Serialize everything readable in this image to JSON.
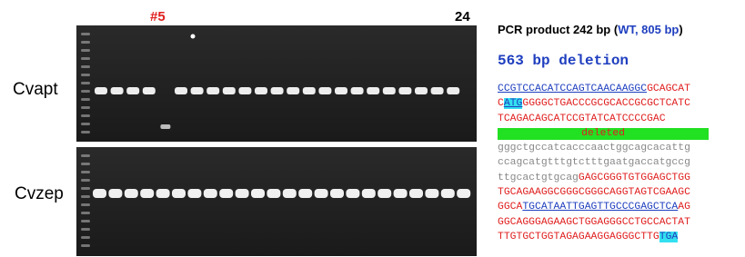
{
  "labels": {
    "lane_marker": "#5",
    "lane_count": "24",
    "gel_top": "Cvapt",
    "gel_bottom": "Cvzep"
  },
  "header": {
    "segments": [
      {
        "text": "PCR product 242 bp (",
        "color": "#000000"
      },
      {
        "text": "WT, 805 bp",
        "color": "#1f3fbf"
      },
      {
        "text": ")",
        "color": "#000000"
      }
    ]
  },
  "subtitle": "563 bp deletion",
  "sequence": {
    "lines": [
      {
        "segments": [
          {
            "text": "CCGTCCACATCCAGTCAACAAGGC",
            "color": "#1f3fbf",
            "underline": true
          },
          {
            "text": "GCAGCAT",
            "color": "#e02020"
          }
        ]
      },
      {
        "segments": [
          {
            "text": "C",
            "color": "#e02020"
          },
          {
            "text": "ATG",
            "color": "#1f3fbf",
            "underline": true,
            "highlight": "#33e0f0"
          },
          {
            "text": "GGGGCTGACCCGCGCACCGCGCTCATC",
            "color": "#e02020"
          }
        ]
      },
      {
        "segments": [
          {
            "text": "TCAGACAGCATCCGTATCATCCCCGAC",
            "color": "#e02020"
          }
        ]
      },
      {
        "segments": [
          {
            "text": "deleted",
            "color": "#e02020",
            "bar": "#22e022"
          }
        ]
      },
      {
        "segments": [
          {
            "text": "gggctgccatcacccaactggcagcacattg",
            "color": "#888888"
          }
        ]
      },
      {
        "segments": [
          {
            "text": "ccagcatgtttgtctttgaatgaccatgccg",
            "color": "#888888"
          }
        ]
      },
      {
        "segments": [
          {
            "text": "ttgcactgtgcag",
            "color": "#888888"
          },
          {
            "text": "GAGCGGGTGTGGAGCTGG",
            "color": "#e02020"
          }
        ]
      },
      {
        "segments": [
          {
            "text": "TGCAGAAGGCGGGCGGGCAGGTAGTCGAAGC",
            "color": "#e02020"
          }
        ]
      },
      {
        "segments": [
          {
            "text": "GGCA",
            "color": "#e02020"
          },
          {
            "text": "TGCATAATTGAGTTGCCCGAGCTCA",
            "color": "#1f3fbf",
            "underline": true
          },
          {
            "text": "AG",
            "color": "#e02020"
          }
        ]
      },
      {
        "segments": [
          {
            "text": "GGCAGGGAGAAGCTGGAGGGCCTGCCACTAT",
            "color": "#e02020"
          }
        ]
      },
      {
        "segments": [
          {
            "text": "TTGTGCTGGTAGAGAAGGAGGGCTTG",
            "color": "#e02020"
          },
          {
            "text": "TGA",
            "color": "#1f3fbf",
            "highlight": "#33e0f0"
          }
        ]
      }
    ]
  }
}
